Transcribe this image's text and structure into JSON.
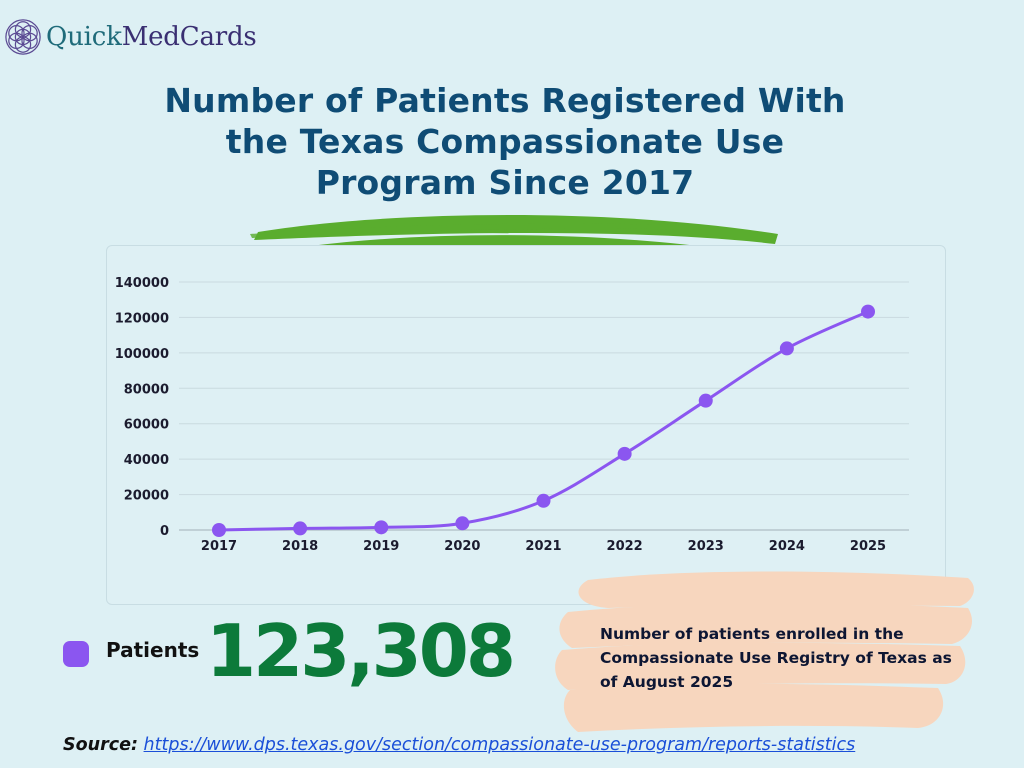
{
  "logo": {
    "brand_prefix": "Quick",
    "brand_suffix": "MedCards"
  },
  "title": "Number of Patients Registered With the Texas Compassionate Use Program Since 2017",
  "colors": {
    "line": "#8b56f0",
    "number": "#0c7a3a",
    "title": "#0f4c75",
    "brush": "#5aad2e",
    "peach": "#f7d6be"
  },
  "chart_data": {
    "type": "line",
    "title": "Number of Patients Registered With the Texas Compassionate Use Program Since 2017",
    "xlabel": "",
    "ylabel": "",
    "categories": [
      "2017",
      "2018",
      "2019",
      "2020",
      "2021",
      "2022",
      "2023",
      "2024",
      "2025"
    ],
    "series": [
      {
        "name": "Patients",
        "values": [
          0,
          900,
          1500,
          3800,
          16500,
          43000,
          73000,
          102500,
          123308
        ]
      }
    ],
    "ylim": [
      0,
      140000
    ],
    "yticks": [
      "0",
      "20000",
      "40000",
      "60000",
      "80000",
      "100000",
      "120000",
      "140000"
    ],
    "grid": true,
    "legend": "bottom-left"
  },
  "legend": {
    "label": "Patients"
  },
  "highlight": {
    "value": "123,308",
    "description": "Number of patients enrolled in the Compassionate Use Registry of Texas as of August 2025"
  },
  "source": {
    "label": "Source:",
    "url": "https://www.dps.texas.gov/section/compassionate-use-program/reports-statistics"
  }
}
